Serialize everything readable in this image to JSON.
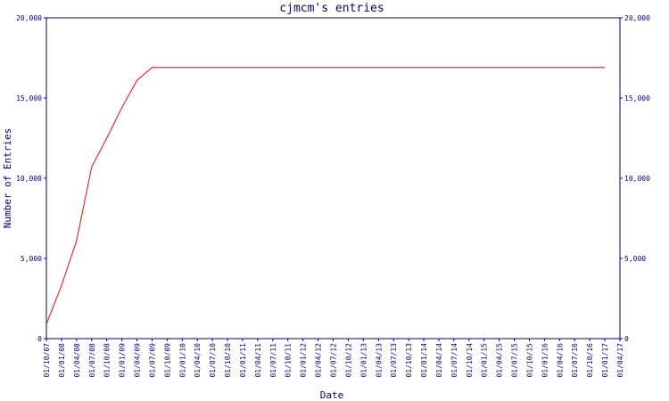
{
  "chart_data": {
    "type": "line",
    "title": "cjmcm's entries",
    "x_label": "Date",
    "y_label": "Number of Entries",
    "categories": [
      "01/10/07",
      "01/01/08",
      "01/04/08",
      "01/07/08",
      "01/10/08",
      "01/01/09",
      "01/04/09",
      "01/07/09",
      "01/10/09",
      "01/01/10",
      "01/04/10",
      "01/07/10",
      "01/10/10",
      "01/01/11",
      "01/04/11",
      "01/07/11",
      "01/10/11",
      "01/01/12",
      "01/04/12",
      "01/07/12",
      "01/10/12",
      "01/01/13",
      "01/04/13",
      "01/07/13",
      "01/10/13",
      "01/01/14",
      "01/04/14",
      "01/07/14",
      "01/10/14",
      "01/01/15",
      "01/04/15",
      "01/07/15",
      "01/10/15",
      "01/01/16",
      "01/04/16",
      "01/07/16",
      "01/10/16",
      "01/01/17",
      "01/04/17"
    ],
    "series": [
      {
        "name": "cjmcm",
        "color": "#ff0000",
        "values": [
          900,
          3300,
          6100,
          10700,
          12500,
          14400,
          16100,
          16900,
          16900,
          16900,
          16900,
          16900,
          16900,
          16900,
          16900,
          16900,
          16900,
          16900,
          16900,
          16900,
          16900,
          16900,
          16900,
          16900,
          16900,
          16900,
          16900,
          16900,
          16900,
          16900,
          16900,
          16900,
          16900,
          16900,
          16900,
          16900,
          16900,
          16900,
          null
        ]
      }
    ],
    "ylim": [
      0,
      20000
    ],
    "yticks": [
      0,
      {
        "value": 5000,
        "label": "5,000"
      },
      {
        "value": 10000,
        "label": "10,000"
      },
      {
        "value": 15000,
        "label": "15,000"
      },
      {
        "value": 20000,
        "label": "20,000"
      }
    ],
    "y2lim": [
      0,
      20000
    ],
    "y2ticks": [
      0,
      {
        "value": 5000,
        "label": "5,000"
      },
      {
        "value": 10000,
        "label": "10,000"
      },
      {
        "value": 15000,
        "label": "15,000"
      },
      {
        "value": 20000,
        "label": "20,000"
      }
    ],
    "axis_color": "#000080"
  }
}
